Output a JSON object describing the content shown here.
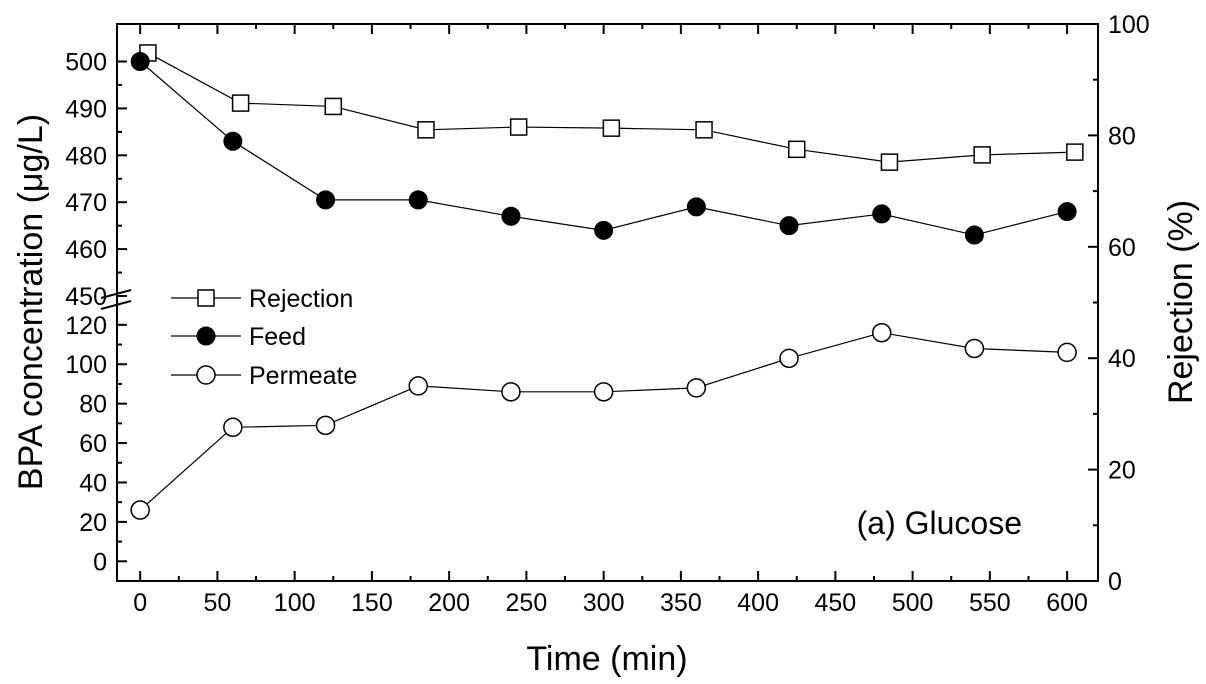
{
  "chart_data": {
    "type": "line",
    "xlabel": "Time (min)",
    "ylabel": "BPA concentration (μg/L)",
    "y2label": "Rejection (%)",
    "annotation": "(a) Glucose",
    "xlim": [
      -15,
      620
    ],
    "xticks": [
      0,
      50,
      100,
      150,
      200,
      250,
      300,
      350,
      400,
      450,
      500,
      550,
      600
    ],
    "y_lower": {
      "range": [
        -10,
        126
      ],
      "ticks": [
        0,
        20,
        40,
        60,
        80,
        100,
        120
      ]
    },
    "y_upper": {
      "range": [
        450,
        508
      ],
      "ticks": [
        450,
        460,
        470,
        480,
        490,
        500
      ]
    },
    "axis_break": "between 120 and 450",
    "y2lim": [
      0,
      100
    ],
    "y2ticks": [
      0,
      20,
      40,
      60,
      80,
      100
    ],
    "legend_position": "middle-left",
    "series": [
      {
        "name": "Rejection",
        "axis": "right",
        "marker": "open-square",
        "x": [
          5,
          65,
          125,
          185,
          245,
          305,
          365,
          425,
          485,
          545,
          605
        ],
        "y": [
          94.8,
          85.8,
          85.2,
          81.0,
          81.5,
          81.3,
          81.0,
          77.5,
          75.2,
          76.5,
          77.0
        ]
      },
      {
        "name": "Feed",
        "axis": "left",
        "marker": "filled-circle",
        "x": [
          0,
          60,
          120,
          180,
          240,
          300,
          360,
          420,
          480,
          540,
          600
        ],
        "y": [
          500,
          483,
          470.5,
          470.5,
          467,
          464,
          469,
          465,
          467.5,
          463,
          468
        ]
      },
      {
        "name": "Permeate",
        "axis": "left",
        "marker": "open-circle",
        "x": [
          0,
          60,
          120,
          180,
          240,
          300,
          360,
          420,
          480,
          540,
          600
        ],
        "y": [
          26,
          68,
          69,
          89,
          86,
          86,
          88,
          103,
          116,
          108,
          106
        ]
      }
    ]
  }
}
